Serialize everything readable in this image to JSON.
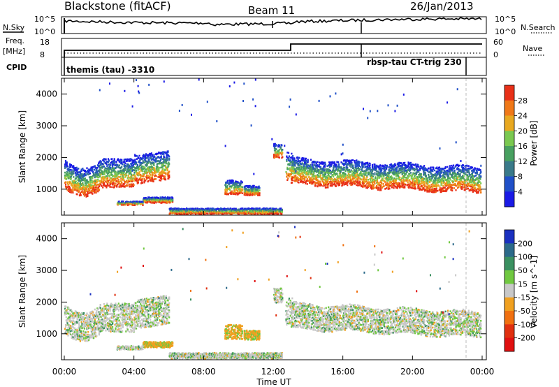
{
  "header": {
    "station": "Blackstone (fitACF)",
    "beam": "Beam 11",
    "date": "26/Jan/2013"
  },
  "noise_panel": {
    "left_label": "N.Sky",
    "left_ticks": [
      "10^5",
      "10^0"
    ],
    "right_label": "N.Search",
    "right_ticks": [
      "10^5",
      "10^0"
    ]
  },
  "freq_panel": {
    "left_label_line1": "Freq.",
    "left_label_line2": "[MHz]",
    "left_ticks": [
      "18",
      "8"
    ],
    "right_label": "Nave",
    "right_ticks": [
      "60",
      "0"
    ]
  },
  "cpid_panel": {
    "label": "CPID",
    "mode_left": "themis (tau) -3310",
    "mode_right": "rbsp-tau CT-trig 230"
  },
  "chart_data": [
    {
      "type": "heatmap",
      "name": "power",
      "ylabel": "Slant Range [km]",
      "yticks": [
        1000,
        2000,
        3000,
        4000
      ],
      "ylim": [
        180,
        4500
      ],
      "colorbar": {
        "label": "Power [dB]",
        "ticks": [
          "4",
          "8",
          "12",
          "16",
          "20",
          "24",
          "28"
        ],
        "colors": [
          "#1a1ae6",
          "#2050c8",
          "#3a7a8a",
          "#48a060",
          "#7ac850",
          "#e8a820",
          "#f07818",
          "#e83018"
        ]
      }
    },
    {
      "type": "heatmap",
      "name": "velocity",
      "ylabel": "Slant Range [km]",
      "yticks": [
        1000,
        2000,
        3000,
        4000
      ],
      "ylim": [
        180,
        4500
      ],
      "colorbar": {
        "label": "Velocity [m s^-1]",
        "ticks": [
          "200",
          "100",
          "50",
          "15",
          "-15",
          "-50",
          "-100",
          "-200"
        ],
        "colors": [
          "#1a30c0",
          "#2c6a8a",
          "#3a9060",
          "#70c840",
          "#c8c8c8",
          "#f0a020",
          "#f07010",
          "#e03010",
          "#e01010"
        ]
      }
    }
  ],
  "xaxis": {
    "label": "Time UT",
    "ticks": [
      "00:00",
      "04:00",
      "08:00",
      "12:00",
      "16:00",
      "20:00",
      "00:00"
    ],
    "range_hours": [
      0,
      24
    ]
  }
}
